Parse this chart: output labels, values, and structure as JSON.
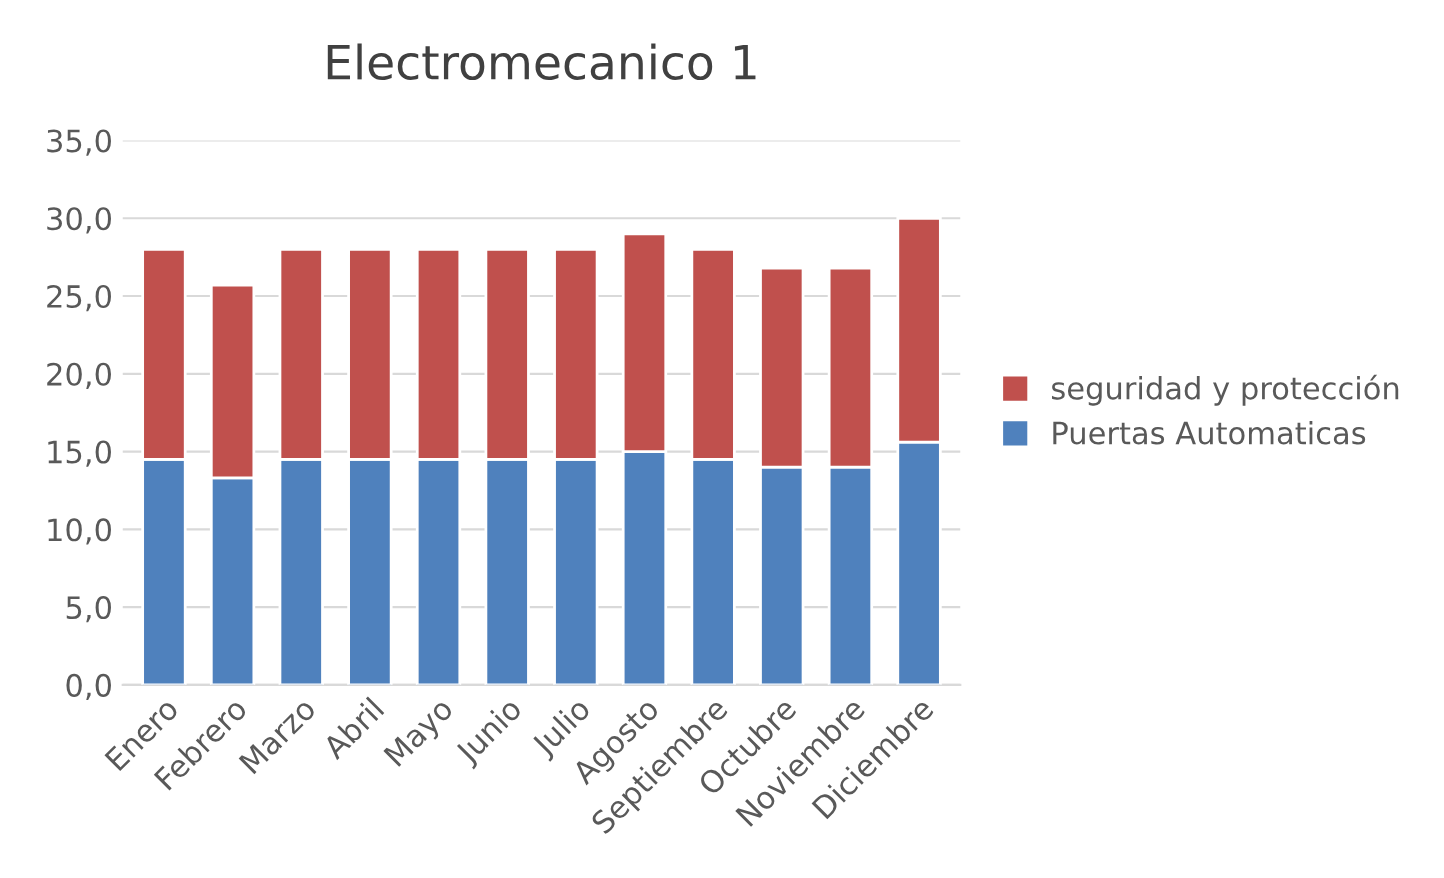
{
  "chart_data": {
    "type": "bar",
    "title": "Electromecanico 1",
    "stacked": true,
    "categories": [
      "Enero",
      "Febrero",
      "Marzo",
      "Abril",
      "Mayo",
      "Junio",
      "Julio",
      "Agosto",
      "Septiembre",
      "Octubre",
      "Noviembre",
      "Diciembre"
    ],
    "series": [
      {
        "name": "Puertas Automaticas",
        "color": "#4f81bd",
        "values": [
          14.5,
          13.3,
          14.5,
          14.5,
          14.5,
          14.5,
          14.5,
          15.0,
          14.5,
          14.0,
          14.0,
          15.6
        ]
      },
      {
        "name": "seguridad y protección",
        "color": "#c0504d",
        "values": [
          13.5,
          12.4,
          13.5,
          13.5,
          13.5,
          13.5,
          13.5,
          14.0,
          13.5,
          12.8,
          12.8,
          14.4
        ]
      }
    ],
    "ylim": [
      0,
      35
    ],
    "yticks": [
      {
        "value": 0,
        "label": "0,0"
      },
      {
        "value": 5,
        "label": "5,0"
      },
      {
        "value": 10,
        "label": "10,0"
      },
      {
        "value": 15,
        "label": "15,0"
      },
      {
        "value": 20,
        "label": "20,0"
      },
      {
        "value": 25,
        "label": "25,0"
      },
      {
        "value": 30,
        "label": "30,0"
      },
      {
        "value": 35,
        "label": "35,0"
      }
    ],
    "grid": "y",
    "legend": "right"
  }
}
